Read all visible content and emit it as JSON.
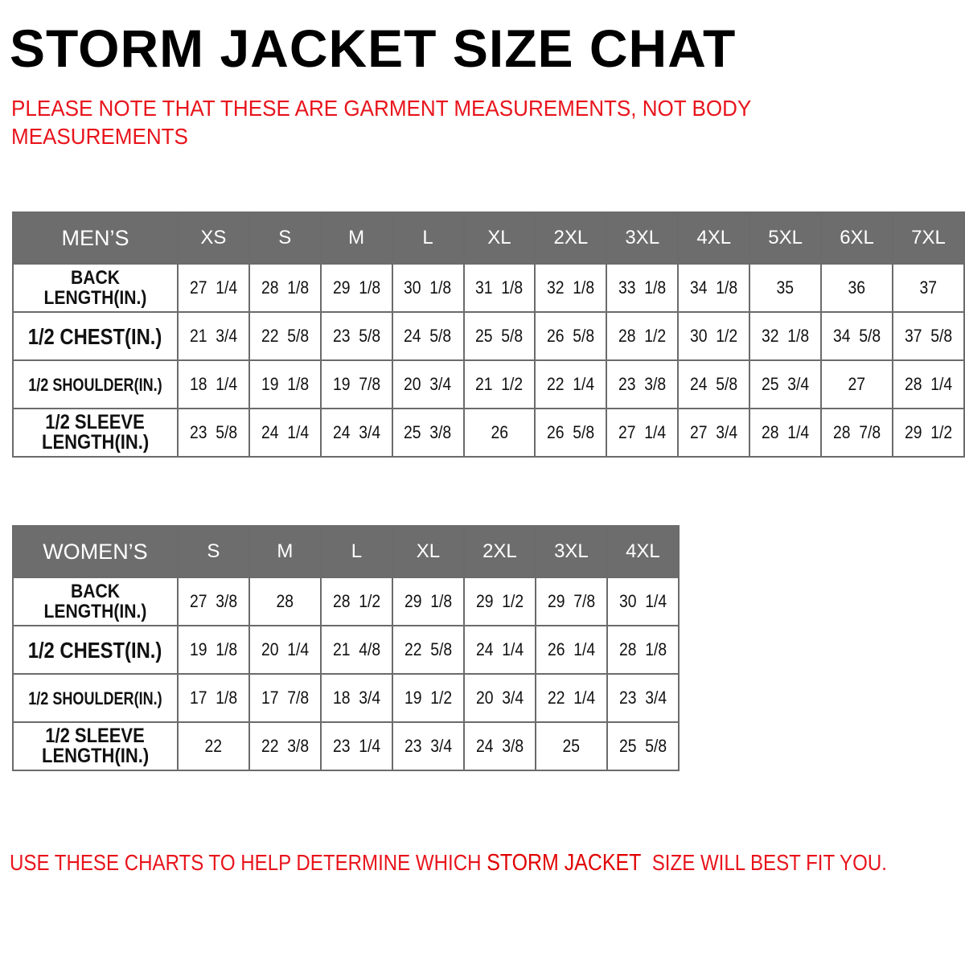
{
  "title": "STORM JACKET SIZE CHAT",
  "note": "PLEASE NOTE THAT THESE ARE GARMENT MEASUREMENTS, NOT BODY MEASUREMENTS",
  "colors": {
    "header_bg": "#6d6d6d",
    "accent_red": "#e8141c"
  },
  "mens": {
    "label": "MEN’S",
    "sizes": [
      "XS",
      "S",
      "M",
      "L",
      "XL",
      "2XL",
      "3XL",
      "4XL",
      "5XL",
      "6XL",
      "7XL"
    ],
    "rows": [
      {
        "label": "BACK LENGTH(IN.)",
        "values": [
          "27 1/4",
          "28 1/8",
          "29 1/8",
          "30 1/8",
          "31 1/8",
          "32 1/8",
          "33 1/8",
          "34 1/8",
          "35",
          "36",
          "37"
        ]
      },
      {
        "label": "1/2 CHEST(IN.)",
        "values": [
          "21 3/4",
          "22 5/8",
          "23 5/8",
          "24 5/8",
          "25 5/8",
          "26 5/8",
          "28 1/2",
          "30 1/2",
          "32 1/8",
          "34 5/8",
          "37 5/8"
        ]
      },
      {
        "label": "1/2 SHOULDER(IN.)",
        "values": [
          "18 1/4",
          "19 1/8",
          "19 7/8",
          "20 3/4",
          "21 1/2",
          "22 1/4",
          "23 3/8",
          "24 5/8",
          "25 3/4",
          "27",
          "28 1/4"
        ]
      },
      {
        "label": "1/2 SLEEVE LENGTH(IN.)",
        "values": [
          "23 5/8",
          "24 1/4",
          "24 3/4",
          "25 3/8",
          "26",
          "26 5/8",
          "27 1/4",
          "27 3/4",
          "28 1/4",
          "28 7/8",
          "29 1/2"
        ]
      }
    ]
  },
  "womens": {
    "label": "WOMEN’S",
    "sizes": [
      "S",
      "M",
      "L",
      "XL",
      "2XL",
      "3XL",
      "4XL"
    ],
    "rows": [
      {
        "label": "BACK LENGTH(IN.)",
        "values": [
          "27 3/8",
          "28",
          "28 1/2",
          "29 1/8",
          "29 1/2",
          "29 7/8",
          "30 1/4"
        ]
      },
      {
        "label": "1/2 CHEST(IN.)",
        "values": [
          "19 1/8",
          "20 1/4",
          "21 4/8",
          "22 5/8",
          "24 1/4",
          "26 1/4",
          "28 1/8"
        ]
      },
      {
        "label": "1/2 SHOULDER(IN.)",
        "values": [
          "17 1/8",
          "17 7/8",
          "18 3/4",
          "19 1/2",
          "20 3/4",
          "22 1/4",
          "23 3/4"
        ]
      },
      {
        "label": "1/2 SLEEVE LENGTH(IN.)",
        "values": [
          "22",
          "22 3/8",
          "23 1/4",
          "23 3/4",
          "24 3/8",
          "25",
          "25 5/8"
        ]
      }
    ]
  },
  "footer": {
    "before": "USE THESE CHARTS TO HELP DETERMINE WHICH ",
    "product": "STORM JACKET",
    "after": "  SIZE WILL BEST FIT YOU."
  }
}
